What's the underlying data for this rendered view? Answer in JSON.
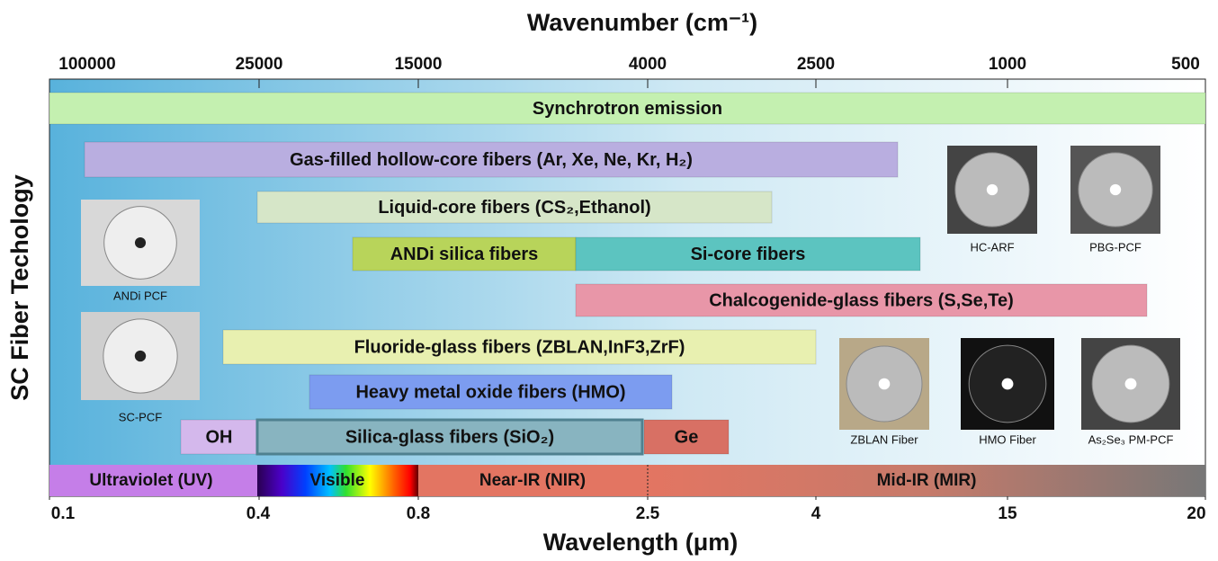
{
  "top_axis": {
    "title": "Wavenumber (cm⁻¹)",
    "ticks": [
      "100000",
      "25000",
      "15000",
      "4000",
      "2500",
      "1000",
      "500"
    ]
  },
  "bottom_axis": {
    "title": "Wavelength (μm)",
    "ticks": [
      "0.1",
      "0.4",
      "0.8",
      "2.5",
      "4",
      "15",
      "20"
    ]
  },
  "side_label": "SC Fiber Techology",
  "bars": [
    "Synchrotron emission",
    "Gas-filled hollow-core fibers (Ar, Xe, Ne, Kr, H₂)",
    "Liquid-core fibers (CS₂,Ethanol)",
    "ANDi silica fibers",
    "Si-core fibers",
    "Chalcogenide-glass fibers (S,Se,Te)",
    "Fluoride-glass fibers (ZBLAN,InF3,ZrF)",
    "Heavy metal oxide fibers (HMO)",
    "OH",
    "Silica-glass fibers (SiO₂)",
    "Ge"
  ],
  "spectrum": [
    "Ultraviolet (UV)",
    "Visible",
    "Near-IR (NIR)",
    "Mid-IR (MIR)"
  ],
  "images": [
    "ANDi PCF",
    "SC-PCF",
    "HC-ARF",
    "PBG-PCF",
    "ZBLAN Fiber",
    "HMO Fiber",
    "As₂Se₃ PM-PCF"
  ]
}
